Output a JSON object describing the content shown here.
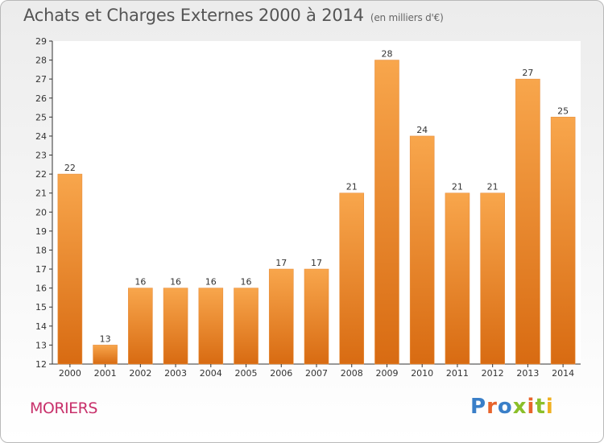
{
  "header": {
    "title": "Achats et Charges Externes 2000 à 2014",
    "subtitle": "(en milliers d'€)"
  },
  "footer": {
    "town": "MORIERS",
    "logo": "Proxiti"
  },
  "colors": {
    "bar_light": "#f8a64c",
    "bar_dark": "#d86b12",
    "town": "#c8316b"
  },
  "chart_data": {
    "type": "bar",
    "title": "Achats et Charges Externes 2000 à 2014",
    "subtitle": "(en milliers d'€)",
    "categories": [
      "2000",
      "2001",
      "2002",
      "2003",
      "2004",
      "2005",
      "2006",
      "2007",
      "2008",
      "2009",
      "2010",
      "2011",
      "2012",
      "2013",
      "2014"
    ],
    "values": [
      22,
      13,
      16,
      16,
      16,
      16,
      17,
      17,
      21,
      28,
      24,
      21,
      21,
      27,
      25
    ],
    "ylim": [
      12,
      29
    ],
    "yticks": [
      12,
      13,
      14,
      15,
      16,
      17,
      18,
      19,
      20,
      21,
      22,
      23,
      24,
      25,
      26,
      27,
      28,
      29
    ],
    "grid": false,
    "xlabel": "",
    "ylabel": ""
  }
}
